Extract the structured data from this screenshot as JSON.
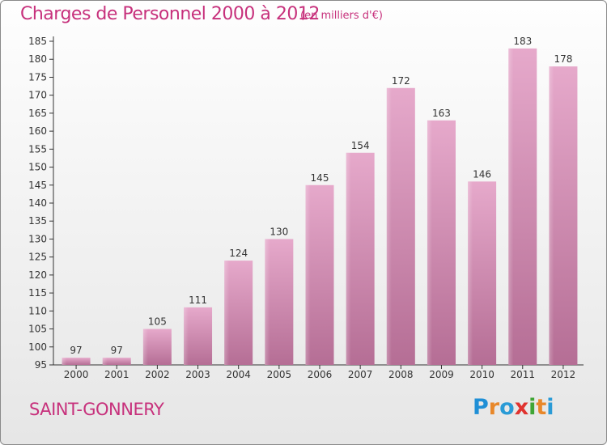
{
  "header": {
    "title": "Charges de Personnel 2000 à 2012",
    "subtitle": "(en milliers d'€)"
  },
  "footer": {
    "town": "SAINT-GONNERY",
    "logo": [
      "P",
      "r",
      "o",
      "x",
      "i",
      "t",
      "i"
    ],
    "logo_colors": [
      "#1f8fd6",
      "#e8882a",
      "#2a9bd6",
      "#e0332f",
      "#3fa535",
      "#e8882a",
      "#2a9bd6"
    ]
  },
  "chart_data": {
    "type": "bar",
    "categories": [
      "2000",
      "2001",
      "2002",
      "2003",
      "2004",
      "2005",
      "2006",
      "2007",
      "2008",
      "2009",
      "2010",
      "2011",
      "2012"
    ],
    "values": [
      97,
      97,
      105,
      111,
      124,
      130,
      145,
      154,
      172,
      163,
      146,
      183,
      178
    ],
    "ylim": [
      95,
      185
    ],
    "yticks": [
      95,
      100,
      105,
      110,
      115,
      120,
      125,
      130,
      135,
      140,
      145,
      150,
      155,
      160,
      165,
      170,
      175,
      180,
      185
    ],
    "grid": false,
    "bar_color": "#c8799f"
  }
}
